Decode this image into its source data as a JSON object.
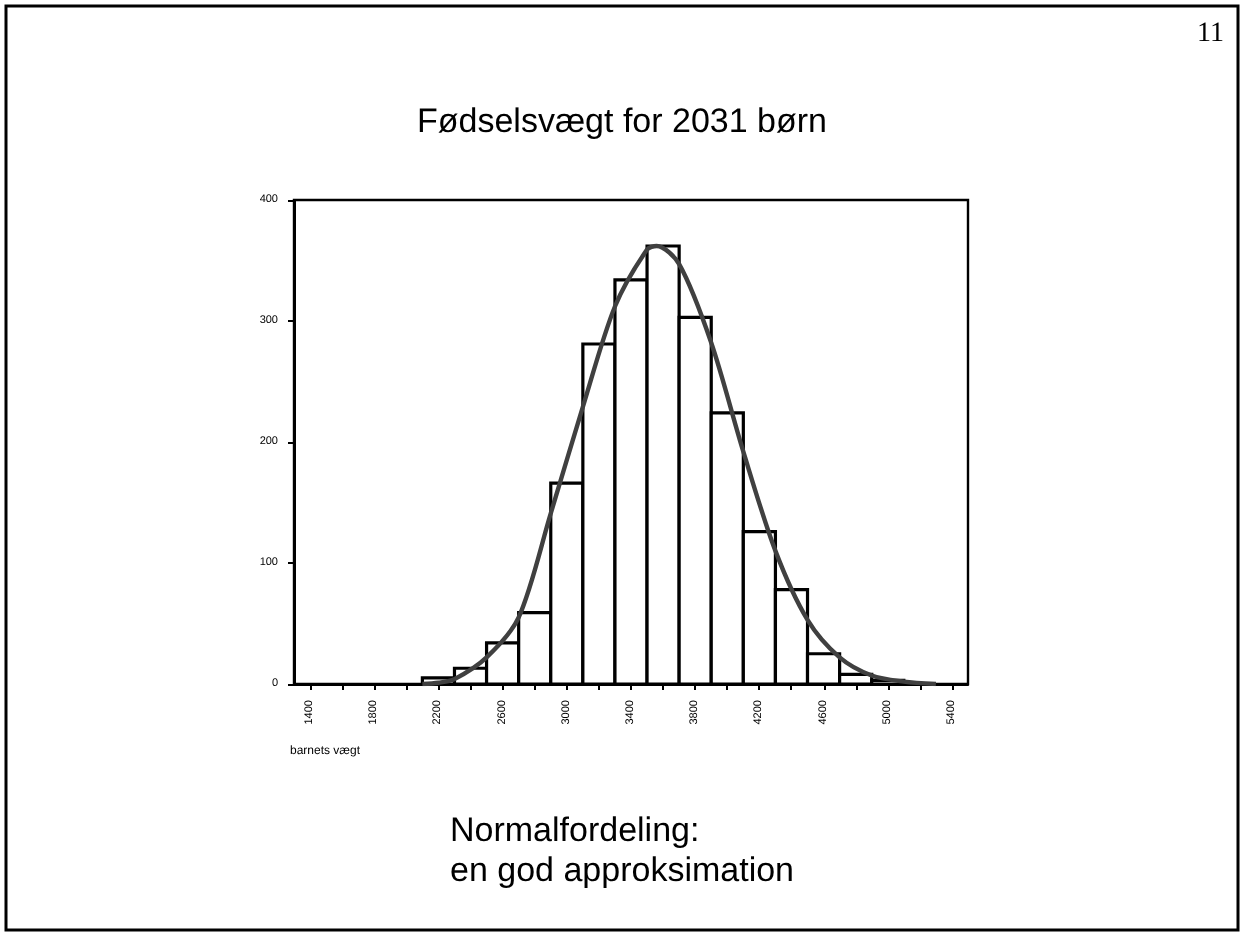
{
  "chart_data": {
    "type": "histogram",
    "title": "Fødselsvægt for 2031 børn",
    "xlabel": "barnets vægt",
    "annotations": [
      "11",
      "Normalfordeling:\nen god approksimation"
    ],
    "bins": [
      2100,
      2300,
      2500,
      2700,
      2900,
      3100,
      3300,
      3500,
      3700,
      3900,
      4100,
      4300,
      4500,
      4700,
      4900,
      5100,
      5300
    ],
    "values": [
      5,
      13,
      34,
      59,
      166,
      281,
      334,
      362,
      303,
      224,
      126,
      78,
      25,
      8,
      3,
      null
    ],
    "color": "#ffffff",
    "series": [
      {
        "type": "line",
        "color": "#404040",
        "x": [
          2100,
          2200,
          2300,
          2500,
          2700,
          2900,
          3100,
          3300,
          3500,
          3560,
          3700,
          3900,
          4100,
          4300,
          4500,
          4700,
          4900,
          5100,
          5300
        ],
        "values": [
          0,
          1,
          4,
          22,
          55,
          141,
          229,
          312,
          359,
          362,
          347,
          282,
          192,
          110,
          53,
          22,
          7,
          2,
          0
        ]
      }
    ],
    "xlim": [
      1300,
      5500
    ],
    "xticks": [
      1400,
      {
        "value": 1600,
        "label": null
      },
      1800,
      {
        "value": 2000,
        "label": null
      },
      2200,
      {
        "value": 2400,
        "label": null
      },
      2600,
      {
        "value": 2800,
        "label": null
      },
      3000,
      {
        "value": 3200,
        "label": null
      },
      3400,
      {
        "value": 3600,
        "label": null
      },
      3800,
      {
        "value": 4000,
        "label": null
      },
      4200,
      {
        "value": 4400,
        "label": null
      },
      4600,
      {
        "value": 4800,
        "label": null
      },
      5000,
      {
        "value": 5200,
        "label": null
      },
      5400
    ],
    "ylim": [
      0,
      400
    ],
    "yticks": [
      0,
      100,
      200,
      300,
      400
    ],
    "grid": false,
    "legend": false
  }
}
